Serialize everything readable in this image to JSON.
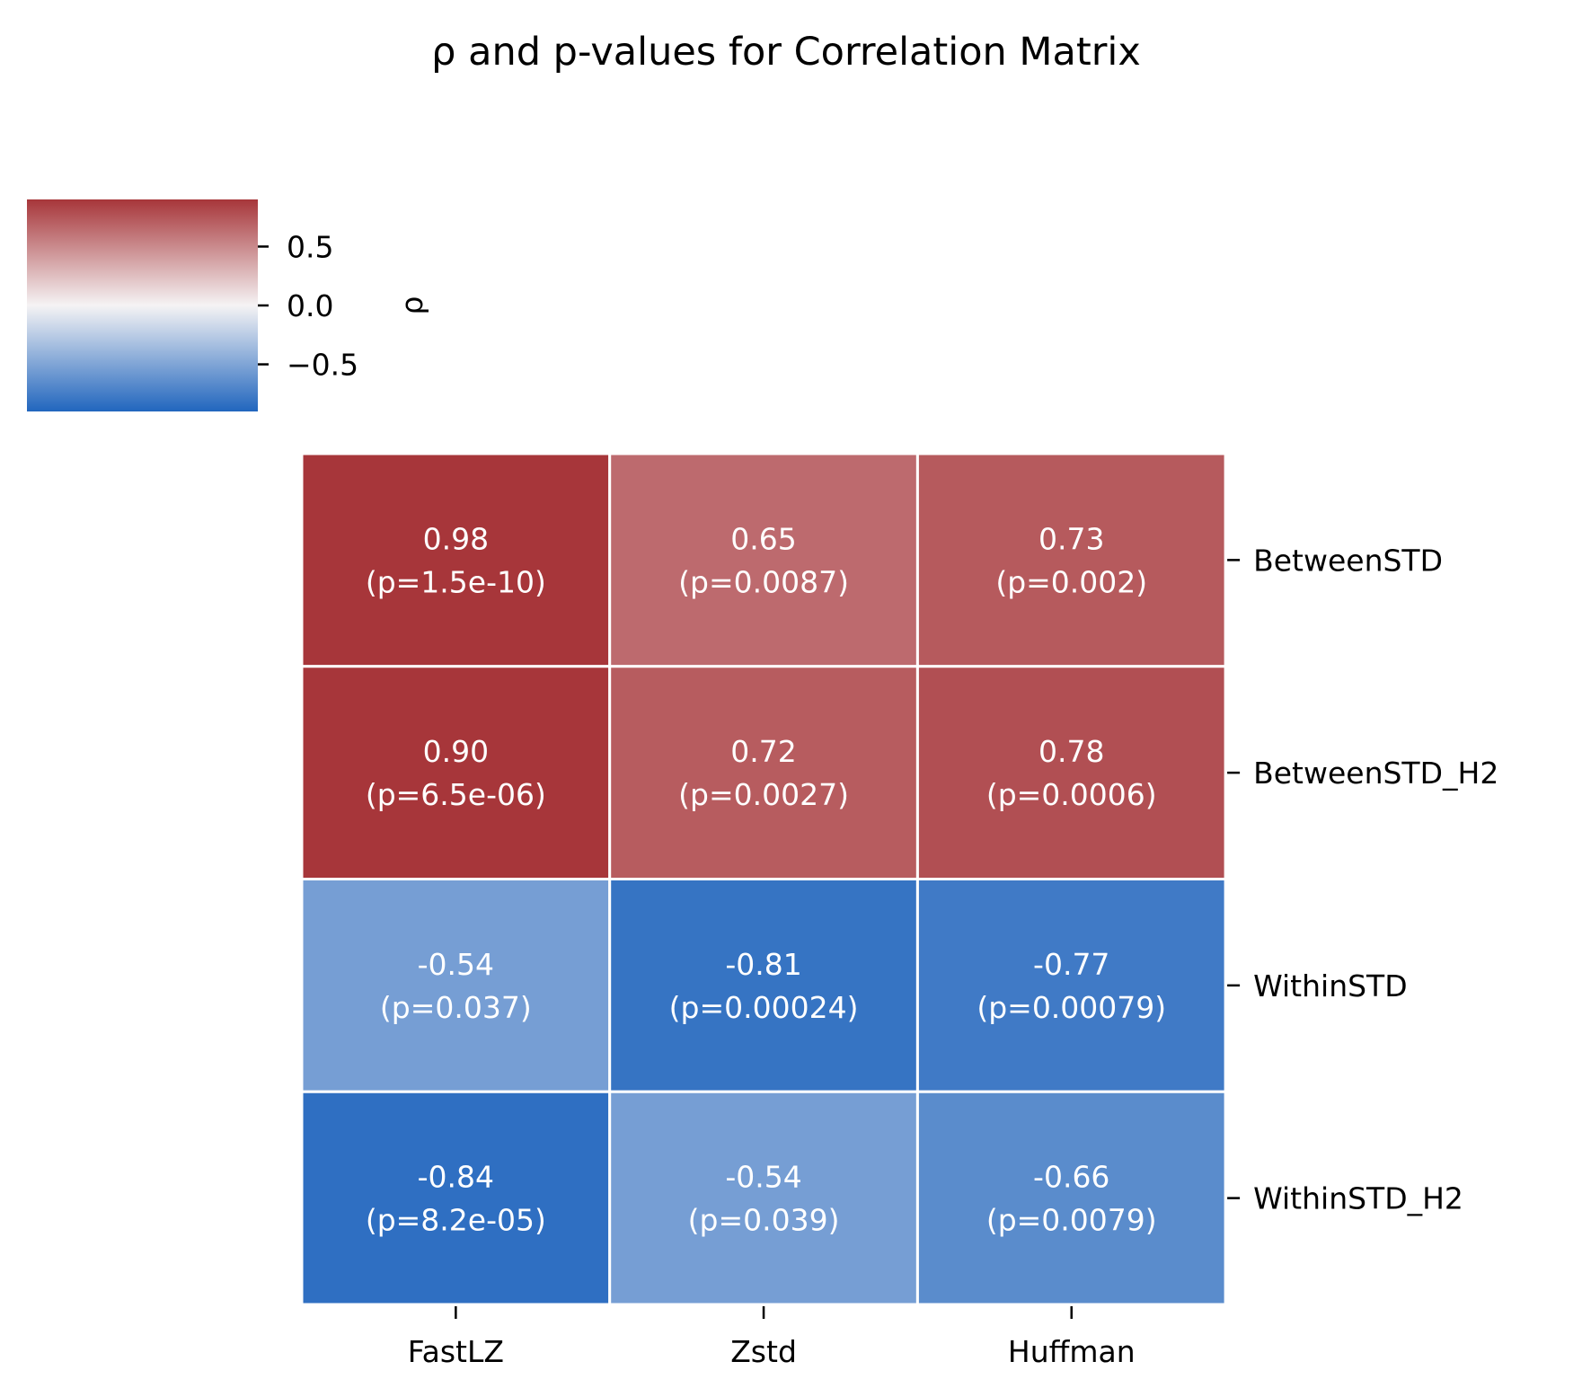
{
  "chart_data": {
    "type": "heatmap",
    "title": "ρ and p-values for Correlation Matrix",
    "columns": [
      "FastLZ",
      "Zstd",
      "Huffman"
    ],
    "rows": [
      "BetweenSTD",
      "BetweenSTD_H2",
      "WithinSTD",
      "WithinSTD_H2"
    ],
    "rho_labels": [
      [
        "0.98",
        "0.65",
        "0.73"
      ],
      [
        "0.90",
        "0.72",
        "0.78"
      ],
      [
        "-0.54",
        "-0.81",
        "-0.77"
      ],
      [
        "-0.84",
        "-0.54",
        "-0.66"
      ]
    ],
    "rho_values": [
      [
        0.98,
        0.65,
        0.73
      ],
      [
        0.9,
        0.72,
        0.78
      ],
      [
        -0.54,
        -0.81,
        -0.77
      ],
      [
        -0.84,
        -0.54,
        -0.66
      ]
    ],
    "p_labels": [
      [
        "(p=1.5e-10)",
        "(p=0.0087)",
        "(p=0.002)"
      ],
      [
        "(p=6.5e-06)",
        "(p=0.0027)",
        "(p=0.0006)"
      ],
      [
        "(p=0.037)",
        "(p=0.00024)",
        "(p=0.00079)"
      ],
      [
        "(p=8.2e-05)",
        "(p=0.039)",
        "(p=0.0079)"
      ]
    ],
    "colorbar": {
      "label": "ρ",
      "range": [
        -0.9,
        0.9
      ],
      "ticks": [
        0.5,
        0.0,
        -0.5
      ],
      "tick_labels": [
        "0.5",
        "0.0",
        "−0.5"
      ],
      "colors": {
        "low": "#2166be",
        "mid": "#f5f3f4",
        "high": "#a7363a"
      }
    },
    "grid_line_color": "#ffffff"
  }
}
